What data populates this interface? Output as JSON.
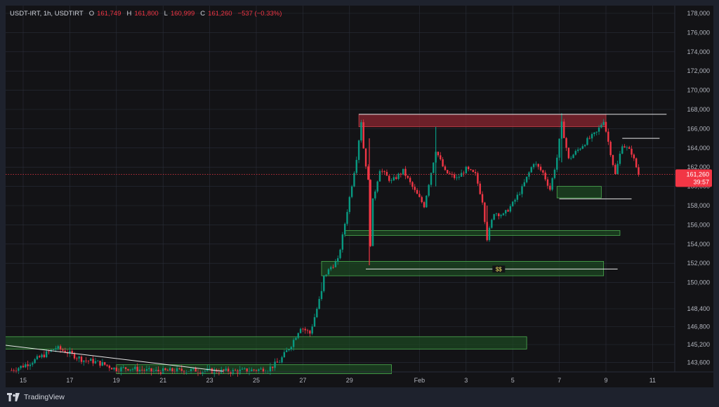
{
  "legend": {
    "symbol": "USDT-IRT, 1h, USDTIRT",
    "open_label": "O",
    "open": "161,749",
    "high_label": "H",
    "high": "161,800",
    "low_label": "L",
    "low": "160,999",
    "close_label": "C",
    "close": "161,260",
    "change": "−537 (−0.33%)"
  },
  "price_tag": {
    "price": "161,260",
    "countdown": "39:57",
    "color": "#f23645"
  },
  "footer": {
    "brand": "TradingView"
  },
  "colors": {
    "up": "#089981",
    "down": "#f23645",
    "grid": "#2a2e39",
    "supply_zone": "#8b2630",
    "demand_zone": "#1d4a22",
    "zone_border": "#4caf50"
  },
  "annotation": {
    "liquidity_label": "$$"
  },
  "chart_data": {
    "type": "candlestick",
    "title": "",
    "xlabel": "",
    "ylabel": "",
    "x_ticks": [
      "15",
      "17",
      "19",
      "21",
      "23",
      "25",
      "27",
      "29",
      "Feb",
      "3",
      "5",
      "7",
      "9",
      "11"
    ],
    "y_ticks": [
      "178,000",
      "176,000",
      "174,000",
      "172,000",
      "170,000",
      "168,000",
      "166,000",
      "164,000",
      "162,000",
      "160,000",
      "158,000",
      "156,000",
      "154,000",
      "152,000",
      "150,000",
      "148,400",
      "146,800",
      "145,200",
      "143,600"
    ],
    "current_price": 161260,
    "price_path": [
      {
        "x": 14.5,
        "y": 142900
      },
      {
        "x": 15.0,
        "y": 143300
      },
      {
        "x": 15.5,
        "y": 143800
      },
      {
        "x": 16.0,
        "y": 144400
      },
      {
        "x": 16.4,
        "y": 144900
      },
      {
        "x": 16.8,
        "y": 144600
      },
      {
        "x": 17.2,
        "y": 144200
      },
      {
        "x": 17.6,
        "y": 143800
      },
      {
        "x": 18.0,
        "y": 143700
      },
      {
        "x": 18.5,
        "y": 143400
      },
      {
        "x": 19.0,
        "y": 143000
      },
      {
        "x": 19.5,
        "y": 143100
      },
      {
        "x": 20.5,
        "y": 142800
      },
      {
        "x": 22.0,
        "y": 142900
      },
      {
        "x": 24.0,
        "y": 142800
      },
      {
        "x": 25.5,
        "y": 143000
      },
      {
        "x": 26.0,
        "y": 143700
      },
      {
        "x": 26.5,
        "y": 145200
      },
      {
        "x": 26.9,
        "y": 146800
      },
      {
        "x": 27.3,
        "y": 146200
      },
      {
        "x": 27.6,
        "y": 148400
      },
      {
        "x": 27.9,
        "y": 150600
      },
      {
        "x": 28.2,
        "y": 151600
      },
      {
        "x": 28.5,
        "y": 152300
      },
      {
        "x": 28.7,
        "y": 154800
      },
      {
        "x": 28.9,
        "y": 157500
      },
      {
        "x": 29.1,
        "y": 160200
      },
      {
        "x": 29.3,
        "y": 163000
      },
      {
        "x": 29.5,
        "y": 166800
      },
      {
        "x": 29.6,
        "y": 164000
      },
      {
        "x": 29.8,
        "y": 160500
      },
      {
        "x": 29.85,
        "y": 151800
      },
      {
        "x": 30.0,
        "y": 158500
      },
      {
        "x": 30.3,
        "y": 161800
      },
      {
        "x": 30.8,
        "y": 160500
      },
      {
        "x": 31.3,
        "y": 161600
      },
      {
        "x": 31.8,
        "y": 159500
      },
      {
        "x": 32.2,
        "y": 158000
      },
      {
        "x": 32.7,
        "y": 163800
      },
      {
        "x": 33.1,
        "y": 161500
      },
      {
        "x": 33.6,
        "y": 160800
      },
      {
        "x": 34.0,
        "y": 161800
      },
      {
        "x": 34.4,
        "y": 161200
      },
      {
        "x": 34.7,
        "y": 158500
      },
      {
        "x": 34.9,
        "y": 154600
      },
      {
        "x": 35.2,
        "y": 157300
      },
      {
        "x": 35.6,
        "y": 157000
      },
      {
        "x": 36.0,
        "y": 158200
      },
      {
        "x": 36.4,
        "y": 159800
      },
      {
        "x": 36.9,
        "y": 162500
      },
      {
        "x": 37.3,
        "y": 161400
      },
      {
        "x": 37.6,
        "y": 159700
      },
      {
        "x": 37.9,
        "y": 163000
      },
      {
        "x": 38.1,
        "y": 166500
      },
      {
        "x": 38.4,
        "y": 162800
      },
      {
        "x": 38.8,
        "y": 163800
      },
      {
        "x": 39.2,
        "y": 164800
      },
      {
        "x": 39.6,
        "y": 165600
      },
      {
        "x": 39.9,
        "y": 166900
      },
      {
        "x": 40.2,
        "y": 163500
      },
      {
        "x": 40.4,
        "y": 161200
      },
      {
        "x": 40.7,
        "y": 164400
      },
      {
        "x": 41.1,
        "y": 163500
      },
      {
        "x": 41.4,
        "y": 161260
      }
    ],
    "zones": [
      {
        "name": "supply",
        "x0": 29.4,
        "x1": 40.0,
        "y0": 166200,
        "y1": 167500,
        "kind": "supply"
      },
      {
        "name": "demand-1",
        "x0": 37.9,
        "x1": 39.8,
        "y0": 158800,
        "y1": 160000,
        "kind": "demand"
      },
      {
        "name": "demand-2",
        "x0": 28.8,
        "x1": 40.6,
        "y0": 154900,
        "y1": 155400,
        "kind": "demand"
      },
      {
        "name": "demand-3",
        "x0": 27.8,
        "x1": 39.9,
        "y0": 150700,
        "y1": 152200,
        "kind": "demand"
      },
      {
        "name": "demand-4",
        "x0": 13.7,
        "x1": 36.6,
        "y0": 144800,
        "y1": 145900,
        "kind": "demand"
      },
      {
        "name": "demand-5",
        "x0": 19.0,
        "x1": 30.8,
        "y0": 142600,
        "y1": 143400,
        "kind": "demand"
      }
    ],
    "horizontal_lines": [
      {
        "x0": 29.4,
        "x1": 42.6,
        "y": 167500
      },
      {
        "x0": 40.7,
        "x1": 42.3,
        "y": 165000
      },
      {
        "x0": 38.0,
        "x1": 41.1,
        "y": 158700
      },
      {
        "x0": 29.7,
        "x1": 40.5,
        "y": 151400
      }
    ],
    "trendline": {
      "x0": 13.6,
      "y0": 145300,
      "x1": 23.6,
      "y1": 142800
    }
  }
}
